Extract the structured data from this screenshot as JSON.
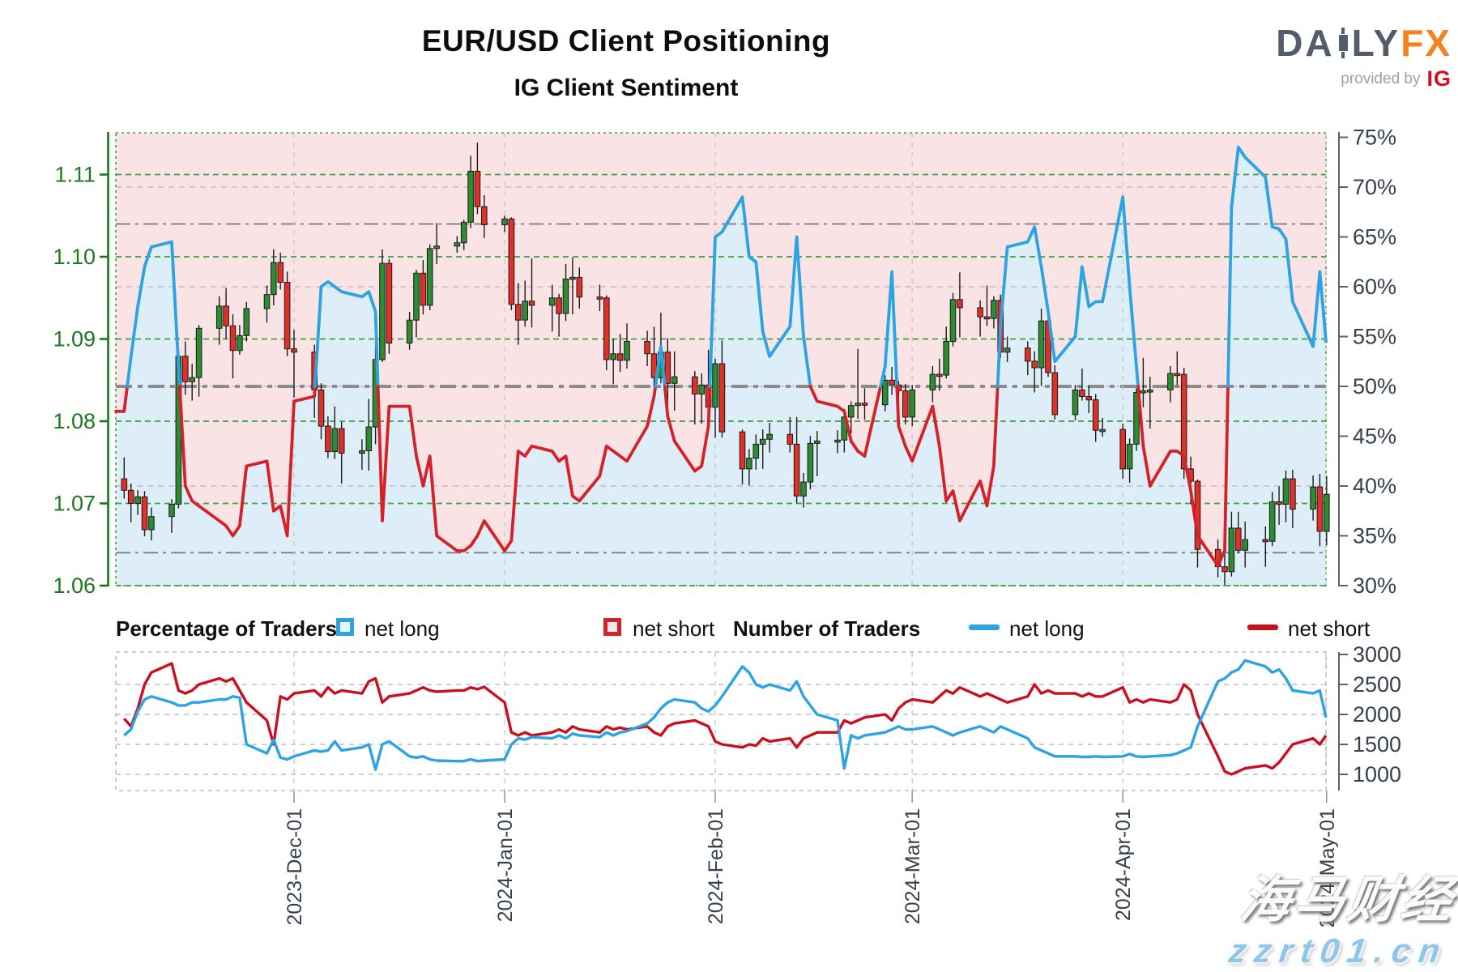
{
  "header": {
    "title": "EUR/USD Client Positioning",
    "subtitle": "IG Client Sentiment"
  },
  "logo": {
    "part1": "DA",
    "part2": "LY",
    "part3": "FX",
    "provided_by": "provided by",
    "ig": "IG"
  },
  "legend": {
    "pct_header": "Percentage of Traders",
    "pct_long": "net long",
    "pct_short": "net short",
    "num_header": "Number of Traders",
    "num_long": "net long",
    "num_short": "net short"
  },
  "watermark": {
    "line1": "海马财经",
    "line2": "zzrt01.cn"
  },
  "colors": {
    "sentiment_blue": "#2da3e2",
    "sentiment_red": "#d42229",
    "fill_pink": "#fae3e5",
    "fill_blue": "#deeef8",
    "candle_up": "#2e8b31",
    "candle_down": "#df3128",
    "candle_edge": "#1a1a1a",
    "grid_green": "#3da03d",
    "axis_green": "#157a15",
    "label_green": "#1e7a1e",
    "label_slate": "#36404e",
    "grid_gray_light": "#bfbfbf",
    "grid_gray_mid": "#8c8c8c",
    "month_line": "#cacaca",
    "panel_border": "#bdbdbd",
    "tick_gray": "#9a9a9a"
  },
  "chart_data": {
    "type": "candlestick+line",
    "title": "EUR/USD Client Positioning",
    "subtitle": "IG Client Sentiment",
    "start_date": "2023-11-06",
    "price_axis": {
      "ticks": [
        1.06,
        1.07,
        1.08,
        1.09,
        1.1,
        1.11
      ],
      "min": 1.06,
      "max": 1.115
    },
    "pct_axis": {
      "ticks": [
        30,
        35,
        40,
        45,
        50,
        55,
        60,
        65,
        70,
        75
      ],
      "min": 30,
      "max": 75
    },
    "count_axis": {
      "ticks": [
        1000,
        1500,
        2000,
        2500,
        3000
      ],
      "min": 730,
      "max": 3040
    },
    "threshold_pct_lines": [
      66.3,
      50,
      33.3
    ],
    "minor_pct_lines": [
      70,
      60,
      50,
      40
    ],
    "month_ticks": [
      {
        "label": "2023-Dec-01",
        "d": 0
      },
      {
        "label": "2024-Jan-01",
        "d": 31
      },
      {
        "label": "2024-Feb-01",
        "d": 62
      },
      {
        "label": "2024-Mar-01",
        "d": 91
      },
      {
        "label": "2024-Apr-01",
        "d": 122
      },
      {
        "label": "2024-May-01",
        "d": 152
      }
    ],
    "ohlc": [
      [
        1.073,
        1.0756,
        1.0706,
        1.0716
      ],
      [
        1.0716,
        1.0724,
        1.0677,
        1.07
      ],
      [
        1.07,
        1.0716,
        1.0686,
        1.0708
      ],
      [
        1.0708,
        1.0715,
        1.066,
        1.0668
      ],
      [
        1.0668,
        1.0695,
        1.0655,
        1.0684
      ],
      [
        1.0684,
        1.0705,
        1.0664,
        1.0699
      ],
      [
        1.0699,
        1.0887,
        1.0694,
        1.0879
      ],
      [
        1.0879,
        1.0897,
        1.0832,
        1.0848
      ],
      [
        1.0848,
        1.087,
        1.0825,
        1.0853
      ],
      [
        1.0853,
        1.0917,
        1.083,
        1.0913
      ],
      [
        1.0913,
        1.0952,
        1.0893,
        1.094
      ],
      [
        1.094,
        1.0962,
        1.09,
        1.0916
      ],
      [
        1.0916,
        1.093,
        1.0852,
        1.0886
      ],
      [
        1.0886,
        1.0917,
        1.0881,
        1.0904
      ],
      [
        1.0904,
        1.0945,
        1.0897,
        1.0937
      ],
      [
        1.0937,
        1.0965,
        1.092,
        1.0954
      ],
      [
        1.0954,
        1.1009,
        1.0941,
        1.0993
      ],
      [
        1.0993,
        1.1005,
        1.096,
        1.0969
      ],
      [
        1.0969,
        1.0982,
        1.0879,
        1.0888
      ],
      [
        1.0888,
        1.0911,
        1.0829,
        1.0884
      ],
      [
        1.0884,
        1.0893,
        1.0804,
        1.0838
      ],
      [
        1.0838,
        1.0846,
        1.0778,
        1.0794
      ],
      [
        1.0794,
        1.0806,
        1.0755,
        1.0763
      ],
      [
        1.0763,
        1.0818,
        1.0754,
        1.0791
      ],
      [
        1.0791,
        1.0799,
        1.0724,
        1.0761
      ],
      [
        1.0761,
        1.0778,
        1.0741,
        1.0764
      ],
      [
        1.0764,
        1.0827,
        1.074,
        1.0793
      ],
      [
        1.0793,
        1.0896,
        1.0772,
        1.0875
      ],
      [
        1.0875,
        1.1009,
        1.0872,
        1.0992
      ],
      [
        1.0992,
        1.0997,
        1.0882,
        1.0895
      ],
      [
        1.0895,
        1.0933,
        1.0887,
        1.0923
      ],
      [
        1.0923,
        1.0984,
        1.0902,
        1.098
      ],
      [
        1.098,
        1.0996,
        1.093,
        1.0941
      ],
      [
        1.0941,
        1.1015,
        1.0935,
        1.101
      ],
      [
        1.101,
        1.1041,
        1.0991,
        1.1013
      ],
      [
        1.1013,
        1.1025,
        1.1005,
        1.1017
      ],
      [
        1.1017,
        1.1045,
        1.1008,
        1.1042
      ],
      [
        1.1042,
        1.1123,
        1.1035,
        1.1104
      ],
      [
        1.1104,
        1.1139,
        1.1052,
        1.1061
      ],
      [
        1.1061,
        1.1075,
        1.1023,
        1.1039
      ],
      [
        1.1039,
        1.105,
        1.103,
        1.1046
      ],
      [
        1.1046,
        1.1048,
        1.0935,
        1.0942
      ],
      [
        1.0942,
        1.0968,
        1.0893,
        1.0923
      ],
      [
        1.0923,
        1.0971,
        1.0915,
        1.0946
      ],
      [
        1.0946,
        1.0998,
        1.0914,
        1.0941
      ],
      [
        1.0941,
        1.0966,
        1.0909,
        1.095
      ],
      [
        1.095,
        1.0955,
        1.0903,
        1.0931
      ],
      [
        1.0931,
        1.0991,
        1.0922,
        1.0973
      ],
      [
        1.0973,
        1.0999,
        1.093,
        1.0975
      ],
      [
        1.0975,
        1.0987,
        1.0937,
        1.0951
      ],
      [
        1.0951,
        1.0966,
        1.0934,
        1.095
      ],
      [
        1.095,
        1.0953,
        1.0862,
        1.0875
      ],
      [
        1.0875,
        1.09,
        1.0845,
        1.0882
      ],
      [
        1.0882,
        1.0906,
        1.086,
        1.0874
      ],
      [
        1.0874,
        1.0919,
        1.0864,
        1.0897
      ],
      [
        1.0897,
        1.091,
        1.0867,
        1.0882
      ],
      [
        1.0882,
        1.0915,
        1.0842,
        1.0853
      ],
      [
        1.0853,
        1.0932,
        1.0846,
        1.0884
      ],
      [
        1.0884,
        1.0901,
        1.0821,
        1.0846
      ],
      [
        1.0846,
        1.0885,
        1.0813,
        1.0854
      ],
      [
        1.0854,
        1.0861,
        1.0796,
        1.0833
      ],
      [
        1.0833,
        1.0858,
        1.0797,
        1.0844
      ],
      [
        1.0844,
        1.0887,
        1.0806,
        1.0817
      ],
      [
        1.0817,
        1.0876,
        1.078,
        1.087
      ],
      [
        1.087,
        1.0898,
        1.078,
        1.0787
      ],
      [
        1.0787,
        1.079,
        1.0723,
        1.0742
      ],
      [
        1.0742,
        1.0766,
        1.0722,
        1.0755
      ],
      [
        1.0755,
        1.0784,
        1.0741,
        1.0772
      ],
      [
        1.0772,
        1.079,
        1.0742,
        1.0778
      ],
      [
        1.0778,
        1.0798,
        1.0762,
        1.0784
      ],
      [
        1.0784,
        1.0805,
        1.0762,
        1.0772
      ],
      [
        1.0772,
        1.0805,
        1.07,
        1.0709
      ],
      [
        1.0709,
        1.0737,
        1.0695,
        1.0726
      ],
      [
        1.0726,
        1.0782,
        1.0717,
        1.0773
      ],
      [
        1.0773,
        1.0788,
        1.0733,
        1.0776
      ],
      [
        1.0776,
        1.0789,
        1.0761,
        1.0777
      ],
      [
        1.0777,
        1.0815,
        1.0762,
        1.0805
      ],
      [
        1.0805,
        1.0824,
        1.0785,
        1.0819
      ],
      [
        1.0819,
        1.0888,
        1.0803,
        1.0822
      ],
      [
        1.0822,
        1.084,
        1.0802,
        1.082
      ],
      [
        1.082,
        1.0856,
        1.0812,
        1.085
      ],
      [
        1.085,
        1.0866,
        1.0832,
        1.0844
      ],
      [
        1.0844,
        1.0849,
        1.0795,
        1.0837
      ],
      [
        1.0837,
        1.0845,
        1.0796,
        1.0805
      ],
      [
        1.0805,
        1.0844,
        1.0794,
        1.0838
      ],
      [
        1.0838,
        1.0867,
        1.0823,
        1.0857
      ],
      [
        1.0857,
        1.0876,
        1.0837,
        1.0856
      ],
      [
        1.0856,
        1.0915,
        1.0852,
        1.0897
      ],
      [
        1.0897,
        1.0956,
        1.0891,
        1.0948
      ],
      [
        1.0948,
        1.0981,
        1.0902,
        1.0938
      ],
      [
        1.0938,
        1.0947,
        1.0903,
        1.0927
      ],
      [
        1.0927,
        1.0965,
        1.0916,
        1.0925
      ],
      [
        1.0925,
        1.0952,
        1.0913,
        1.0947
      ],
      [
        1.0947,
        1.0954,
        1.0877,
        1.0884
      ],
      [
        1.0884,
        1.0903,
        1.0872,
        1.0889
      ],
      [
        1.0889,
        1.0897,
        1.0856,
        1.0873
      ],
      [
        1.0873,
        1.0885,
        1.0835,
        1.0865
      ],
      [
        1.0865,
        1.0937,
        1.0843,
        1.0922
      ],
      [
        1.0922,
        1.0941,
        1.0854,
        1.0859
      ],
      [
        1.0859,
        1.0868,
        1.0802,
        1.0808
      ],
      [
        1.0808,
        1.0844,
        1.0801,
        1.0838
      ],
      [
        1.0838,
        1.0864,
        1.0825,
        1.083
      ],
      [
        1.083,
        1.0843,
        1.081,
        1.0826
      ],
      [
        1.0826,
        1.0833,
        1.0775,
        1.0789
      ],
      [
        1.0789,
        1.0804,
        1.0781,
        1.079
      ],
      [
        1.079,
        1.0797,
        1.073,
        1.0742
      ],
      [
        1.0742,
        1.0779,
        1.0725,
        1.0772
      ],
      [
        1.0772,
        1.084,
        1.0764,
        1.0835
      ],
      [
        1.0835,
        1.0877,
        1.0817,
        1.0837
      ],
      [
        1.0837,
        1.0854,
        1.0791,
        1.0838
      ],
      [
        1.0838,
        1.0867,
        1.0823,
        1.0858
      ],
      [
        1.0858,
        1.0885,
        1.0844,
        1.0857
      ],
      [
        1.0857,
        1.0865,
        1.073,
        1.0742
      ],
      [
        1.0742,
        1.0757,
        1.0699,
        1.0727
      ],
      [
        1.0727,
        1.0729,
        1.0622,
        1.0644
      ],
      [
        1.0644,
        1.0656,
        1.061,
        1.0623
      ],
      [
        1.0623,
        1.0654,
        1.0601,
        1.0617
      ],
      [
        1.0617,
        1.069,
        1.0611,
        1.067
      ],
      [
        1.067,
        1.069,
        1.064,
        1.0643
      ],
      [
        1.0643,
        1.0678,
        1.0622,
        1.0656
      ],
      [
        1.0656,
        1.0672,
        1.0623,
        1.0654
      ],
      [
        1.0654,
        1.0714,
        1.0648,
        1.0702
      ],
      [
        1.0702,
        1.0721,
        1.0674,
        1.0699
      ],
      [
        1.0699,
        1.074,
        1.0677,
        1.073
      ],
      [
        1.073,
        1.0741,
        1.067,
        1.0693
      ],
      [
        1.0693,
        1.0734,
        1.0679,
        1.072
      ],
      [
        1.072,
        1.0736,
        1.0648,
        1.0666
      ],
      [
        1.0666,
        1.0733,
        1.0649,
        1.0711
      ]
    ],
    "net_long_pct": [
      47.5,
      53,
      58,
      62,
      64,
      64.5,
      52,
      40,
      38.5,
      38,
      36.5,
      36,
      35,
      36,
      42,
      42.5,
      37.5,
      38,
      35,
      48.5,
      49,
      60,
      60.5,
      60,
      59.5,
      59,
      59.5,
      57.5,
      36.5,
      48,
      48,
      43,
      40,
      43,
      35,
      33.5,
      33.5,
      34,
      35,
      36.5,
      33.5,
      34.5,
      43.5,
      43,
      44,
      43.5,
      42.5,
      43,
      39,
      38.5,
      41,
      44,
      43.5,
      43,
      42.5,
      46,
      49,
      54,
      47,
      44.5,
      41.5,
      42,
      46,
      65,
      65.5,
      69,
      63,
      62.5,
      55.5,
      53,
      56,
      65,
      55,
      50,
      48.5,
      48,
      47.5,
      44.5,
      43.5,
      43,
      52,
      61.5,
      46,
      44,
      42.5,
      48,
      44,
      38.5,
      39.5,
      36.5,
      40.5,
      38,
      42,
      56,
      64,
      64.5,
      66,
      62,
      57.5,
      52.5,
      55,
      62,
      58,
      58.5,
      58.5,
      69,
      60,
      52,
      44,
      40,
      43.5,
      43.5,
      43,
      39.5,
      35,
      32,
      33.5,
      68,
      74,
      73,
      71,
      66,
      65.8,
      64.8,
      58.5,
      54,
      61.5,
      54.5
    ],
    "net_long_count": [
      1650,
      1750,
      2050,
      2250,
      2300,
      2200,
      2150,
      2150,
      2200,
      2200,
      2250,
      2250,
      2300,
      2280,
      1500,
      1350,
      1580,
      1280,
      1250,
      1300,
      1400,
      1380,
      1400,
      1550,
      1400,
      1450,
      1500,
      1080,
      1500,
      1550,
      1300,
      1280,
      1300,
      1250,
      1230,
      1220,
      1220,
      1250,
      1220,
      1230,
      1250,
      1500,
      1600,
      1580,
      1620,
      1600,
      1650,
      1600,
      1680,
      1650,
      1620,
      1700,
      1650,
      1700,
      1720,
      1850,
      1950,
      2100,
      2200,
      2250,
      2200,
      2100,
      2050,
      2150,
      2300,
      2800,
      2700,
      2500,
      2450,
      2500,
      2400,
      2550,
      2300,
      2150,
      2000,
      1900,
      1100,
      1650,
      1600,
      1650,
      1700,
      1750,
      1800,
      1750,
      1750,
      1800,
      1750,
      1700,
      1650,
      1700,
      1800,
      1750,
      1700,
      1800,
      1750,
      1600,
      1450,
      1400,
      1350,
      1300,
      1300,
      1290,
      1290,
      1300,
      1290,
      1300,
      1340,
      1300,
      1290,
      1300,
      1320,
      1350,
      1400,
      1450,
      1800,
      2550,
      2600,
      2700,
      2750,
      2900,
      2800,
      2700,
      2750,
      2600,
      2400,
      2350,
      2400,
      1950
    ],
    "net_short_count": [
      1930,
      1800,
      2100,
      2500,
      2700,
      2850,
      2400,
      2350,
      2400,
      2500,
      2600,
      2550,
      2600,
      2400,
      2200,
      1900,
      1500,
      2300,
      2250,
      2350,
      2400,
      2300,
      2450,
      2350,
      2400,
      2350,
      2550,
      2600,
      2200,
      2300,
      2350,
      2400,
      2450,
      2400,
      2380,
      2400,
      2400,
      2450,
      2420,
      2460,
      2200,
      1700,
      1650,
      1700,
      1650,
      1700,
      1750,
      1700,
      1800,
      1750,
      1700,
      1800,
      1750,
      1780,
      1750,
      1800,
      1700,
      1650,
      1800,
      1850,
      1900,
      1850,
      1800,
      1550,
      1500,
      1450,
      1500,
      1480,
      1600,
      1550,
      1600,
      1450,
      1600,
      1650,
      1700,
      1700,
      1900,
      1850,
      1900,
      1950,
      2000,
      1900,
      2100,
      2200,
      2250,
      2200,
      2300,
      2400,
      2350,
      2450,
      2300,
      2350,
      2300,
      2250,
      2200,
      2300,
      2500,
      2350,
      2400,
      2350,
      2350,
      2300,
      2350,
      2300,
      2300,
      2450,
      2200,
      2250,
      2200,
      2250,
      2200,
      2250,
      2500,
      2400,
      2000,
      1300,
      1050,
      1000,
      1050,
      1100,
      1150,
      1100,
      1200,
      1350,
      1500,
      1600,
      1500,
      1650
    ]
  }
}
